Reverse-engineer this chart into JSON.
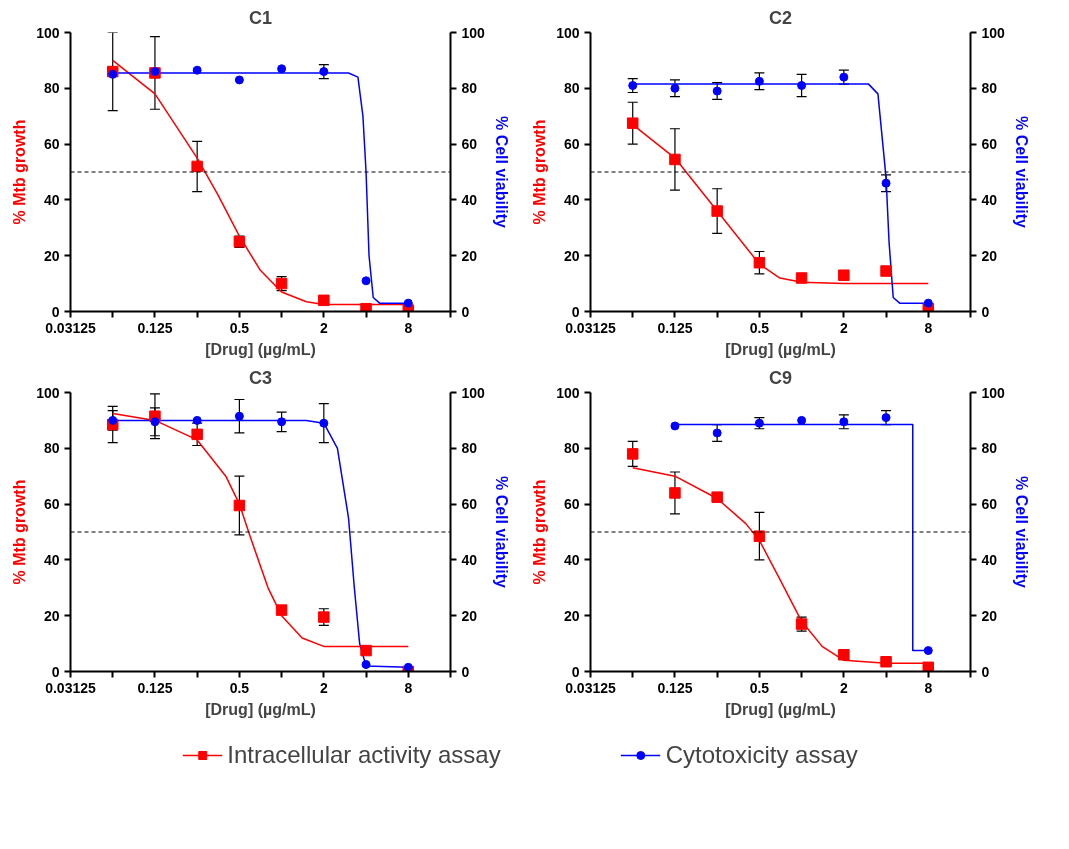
{
  "chart_data": [
    {
      "type": "scatter",
      "title": "C1",
      "xlabel": "[Drug] (µg/mL)",
      "ylabel": "% Mtb growth",
      "y2label": "% Cell viability",
      "log": "x",
      "xlim": [
        0.03125,
        16
      ],
      "xticks": [
        0.03125,
        {
          "value": 0.0625,
          "label": null
        },
        0.125,
        {
          "value": 0.25,
          "label": null
        },
        0.5,
        {
          "value": 1,
          "label": null
        },
        2,
        {
          "value": 4,
          "label": null
        },
        8,
        {
          "value": 16,
          "label": null
        }
      ],
      "ylim": [
        0,
        100
      ],
      "yticks": [
        0,
        20,
        40,
        60,
        80,
        100
      ],
      "y2lim": [
        0,
        100
      ],
      "y2ticks": [
        0,
        20,
        40,
        60,
        80,
        100
      ],
      "grid": false,
      "legend": "bottom",
      "ref_lines": [
        {
          "axis": "y",
          "value": 50,
          "label": null,
          "color": "#000000",
          "line_style": "dashed"
        }
      ],
      "x": [
        0.0625,
        0.125,
        0.25,
        0.5,
        1,
        2,
        4,
        8
      ],
      "series": [
        {
          "type": "line",
          "color": "#ff0000",
          "x": [
            0.0625,
            0.125,
            0.25,
            0.35,
            0.5,
            0.7,
            1,
            1.5,
            2,
            8
          ],
          "values": [
            90,
            78,
            55,
            42,
            27,
            15,
            7,
            3.5,
            2.5,
            2.5
          ]
        },
        {
          "type": "line",
          "axis": "y2",
          "color": "#0000ff",
          "x": [
            0.0625,
            3,
            3.5,
            3.8,
            4,
            4.2,
            4.5,
            5,
            8
          ],
          "values": [
            85.5,
            85.5,
            84,
            70,
            50,
            20,
            5,
            3,
            3
          ]
        },
        {
          "name": "Intracellular activity assay",
          "color": "#ff0000",
          "marker": "square",
          "values": [
            86,
            85.5,
            52,
            25,
            10,
            4,
            1,
            0.5
          ],
          "errors": [
            14,
            13,
            9,
            2,
            2.5,
            null,
            null,
            null
          ]
        },
        {
          "name": "Cytotoxicity assay",
          "axis": "y2",
          "color": "#0000ff",
          "marker": "circle",
          "values": [
            85,
            86,
            86.5,
            83,
            87,
            86,
            11,
            3
          ],
          "errors": [
            null,
            null,
            null,
            null,
            null,
            2.5,
            null,
            null
          ]
        }
      ]
    },
    {
      "type": "scatter",
      "title": "C2",
      "xlabel": "[Drug] (µg/mL)",
      "ylabel": "% Mtb growth",
      "y2label": "% Cell viability",
      "log": "x",
      "xlim": [
        0.03125,
        16
      ],
      "xticks": [
        0.03125,
        {
          "value": 0.0625,
          "label": null
        },
        0.125,
        {
          "value": 0.25,
          "label": null
        },
        0.5,
        {
          "value": 1,
          "label": null
        },
        2,
        {
          "value": 4,
          "label": null
        },
        8,
        {
          "value": 16,
          "label": null
        }
      ],
      "ylim": [
        0,
        100
      ],
      "yticks": [
        0,
        20,
        40,
        60,
        80,
        100
      ],
      "y2lim": [
        0,
        100
      ],
      "y2ticks": [
        0,
        20,
        40,
        60,
        80,
        100
      ],
      "grid": false,
      "legend": "bottom",
      "ref_lines": [
        {
          "axis": "y",
          "value": 50,
          "label": null,
          "color": "#000000",
          "line_style": "dashed"
        }
      ],
      "x": [
        0.0625,
        0.125,
        0.25,
        0.5,
        1,
        2,
        4,
        8
      ],
      "series": [
        {
          "type": "line",
          "color": "#ff0000",
          "x": [
            0.0625,
            0.125,
            0.25,
            0.5,
            0.7,
            1,
            2,
            8
          ],
          "values": [
            67,
            55,
            36,
            17,
            12,
            10.5,
            10,
            10
          ]
        },
        {
          "type": "line",
          "axis": "y2",
          "color": "#0000ff",
          "x": [
            0.0625,
            3,
            3.5,
            4,
            4.2,
            4.5,
            5,
            8
          ],
          "values": [
            81.5,
            81.5,
            78,
            48,
            25,
            5,
            3,
            3
          ]
        },
        {
          "name": "Intracellular activity assay",
          "color": "#ff0000",
          "marker": "square",
          "values": [
            67.5,
            54.5,
            36,
            17.5,
            12,
            13,
            14.5,
            1
          ],
          "errors": [
            7.5,
            11,
            8,
            4,
            null,
            null,
            null,
            null
          ]
        },
        {
          "name": "Cytotoxicity assay",
          "axis": "y2",
          "color": "#0000ff",
          "marker": "circle",
          "values": [
            81,
            80,
            79,
            82.5,
            81,
            84,
            46,
            3
          ],
          "errors": [
            2.5,
            3,
            3,
            3,
            4,
            2.5,
            3,
            null
          ]
        }
      ]
    },
    {
      "type": "scatter",
      "title": "C3",
      "xlabel": "[Drug] (µg/mL)",
      "ylabel": "% Mtb growth",
      "y2label": "% Cell viability",
      "log": "x",
      "xlim": [
        0.03125,
        16
      ],
      "xticks": [
        0.03125,
        {
          "value": 0.0625,
          "label": null
        },
        0.125,
        {
          "value": 0.25,
          "label": null
        },
        0.5,
        {
          "value": 1,
          "label": null
        },
        2,
        {
          "value": 4,
          "label": null
        },
        8,
        {
          "value": 16,
          "label": null
        }
      ],
      "ylim": [
        0,
        100
      ],
      "yticks": [
        0,
        20,
        40,
        60,
        80,
        100
      ],
      "y2lim": [
        0,
        100
      ],
      "y2ticks": [
        0,
        20,
        40,
        60,
        80,
        100
      ],
      "grid": false,
      "legend": "bottom",
      "ref_lines": [
        {
          "axis": "y",
          "value": 50,
          "label": null,
          "color": "#000000",
          "line_style": "dashed"
        }
      ],
      "x": [
        0.0625,
        0.125,
        0.25,
        0.5,
        1,
        2,
        4,
        8
      ],
      "series": [
        {
          "type": "line",
          "color": "#ff0000",
          "x": [
            0.0625,
            0.125,
            0.25,
            0.4,
            0.5,
            0.6,
            0.8,
            1,
            1.4,
            2,
            8
          ],
          "values": [
            92.5,
            90,
            83,
            70,
            60,
            48,
            30,
            20,
            12,
            9,
            9
          ]
        },
        {
          "type": "line",
          "axis": "y2",
          "color": "#0000ff",
          "x": [
            0.0625,
            1.5,
            2,
            2.5,
            3,
            3.3,
            3.6,
            4,
            8
          ],
          "values": [
            90,
            90,
            89,
            80,
            55,
            30,
            10,
            2,
            1.5
          ]
        },
        {
          "name": "Intracellular activity assay",
          "color": "#ff0000",
          "marker": "square",
          "values": [
            88.5,
            91.5,
            85,
            59.5,
            22,
            19.5,
            7.5,
            0
          ],
          "errors": [
            6.5,
            8,
            4,
            10.5,
            null,
            3,
            null,
            null
          ]
        },
        {
          "name": "Cytotoxicity assay",
          "axis": "y2",
          "color": "#0000ff",
          "marker": "circle",
          "values": [
            90,
            89.5,
            90,
            91.5,
            89.5,
            89,
            2.5,
            1.5
          ],
          "errors": [
            3.5,
            5,
            null,
            6,
            3.5,
            7,
            null,
            null
          ]
        }
      ]
    },
    {
      "type": "scatter",
      "title": "C9",
      "xlabel": "[Drug] (µg/mL)",
      "ylabel": "% Mtb growth",
      "y2label": "% Cell viability",
      "log": "x",
      "xlim": [
        0.03125,
        16
      ],
      "xticks": [
        0.03125,
        {
          "value": 0.0625,
          "label": null
        },
        0.125,
        {
          "value": 0.25,
          "label": null
        },
        0.5,
        {
          "value": 1,
          "label": null
        },
        2,
        {
          "value": 4,
          "label": null
        },
        8,
        {
          "value": 16,
          "label": null
        }
      ],
      "ylim": [
        0,
        100
      ],
      "yticks": [
        0,
        20,
        40,
        60,
        80,
        100
      ],
      "y2lim": [
        0,
        100
      ],
      "y2ticks": [
        0,
        20,
        40,
        60,
        80,
        100
      ],
      "grid": false,
      "legend": "bottom",
      "ref_lines": [
        {
          "axis": "y",
          "value": 50,
          "label": null,
          "color": "#000000",
          "line_style": "dashed"
        }
      ],
      "series": [
        {
          "type": "line",
          "color": "#ff0000",
          "x": [
            0.0625,
            0.125,
            0.25,
            0.4,
            0.5,
            0.7,
            1,
            1.4,
            2,
            4,
            8
          ],
          "values": [
            73,
            70,
            62,
            53,
            47,
            33,
            18,
            9,
            4,
            3,
            3
          ]
        },
        {
          "type": "line",
          "axis": "y2",
          "color": "#0000ff",
          "x": [
            0.125,
            6.2,
            6.2,
            8
          ],
          "values": [
            88.5,
            88.5,
            7.5,
            7.5
          ]
        },
        {
          "name": "Intracellular activity assay",
          "color": "#ff0000",
          "marker": "square",
          "x": [
            0.0625,
            0.125,
            0.25,
            0.5,
            1,
            2,
            4,
            8
          ],
          "values": [
            78,
            64,
            62.5,
            48.5,
            17,
            6,
            3.5,
            1.5
          ],
          "errors": [
            4.5,
            7.5,
            null,
            8.5,
            2.5,
            null,
            null,
            null
          ]
        },
        {
          "name": "Cytotoxicity assay",
          "axis": "y2",
          "color": "#0000ff",
          "marker": "circle",
          "x": [
            0.125,
            0.25,
            0.5,
            1,
            2,
            4,
            8
          ],
          "values": [
            88,
            85.5,
            89,
            90,
            89.5,
            91,
            7.5
          ],
          "errors": [
            null,
            3,
            2,
            null,
            2.5,
            2.5,
            null
          ]
        }
      ]
    }
  ]
}
